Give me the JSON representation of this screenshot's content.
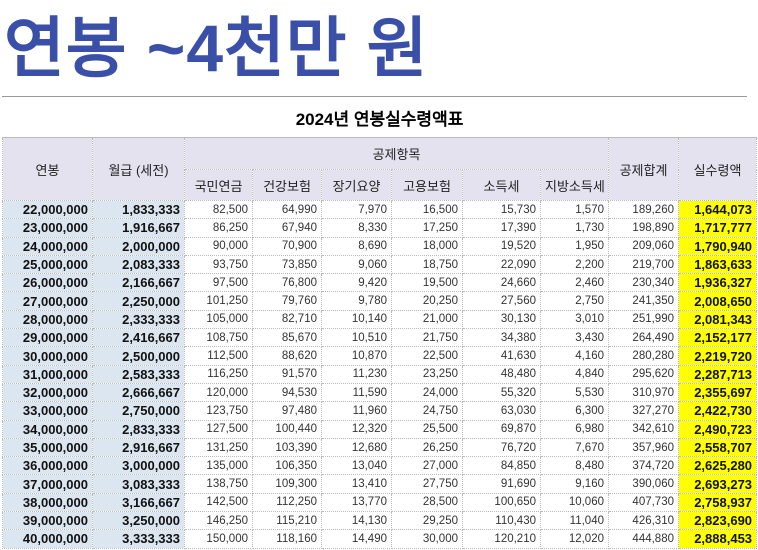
{
  "banner_title": "연봉 ~4천만 원",
  "table": {
    "title": "2024년 연봉실수령액표",
    "headers": {
      "salary": "연봉",
      "monthly": "월급 (세전)",
      "deductions_group": "공제항목",
      "deductions": [
        "국민연금",
        "건강보험",
        "장기요양",
        "고용보험",
        "소득세",
        "지방소득세"
      ],
      "total_deduction": "공제합계",
      "net": "실수령액"
    },
    "rows": [
      [
        "22,000,000",
        "1,833,333",
        "82,500",
        "64,990",
        "7,970",
        "16,500",
        "15,730",
        "1,570",
        "189,260",
        "1,644,073"
      ],
      [
        "23,000,000",
        "1,916,667",
        "86,250",
        "67,940",
        "8,330",
        "17,250",
        "17,390",
        "1,730",
        "198,890",
        "1,717,777"
      ],
      [
        "24,000,000",
        "2,000,000",
        "90,000",
        "70,900",
        "8,690",
        "18,000",
        "19,520",
        "1,950",
        "209,060",
        "1,790,940"
      ],
      [
        "25,000,000",
        "2,083,333",
        "93,750",
        "73,850",
        "9,060",
        "18,750",
        "22,090",
        "2,200",
        "219,700",
        "1,863,633"
      ],
      [
        "26,000,000",
        "2,166,667",
        "97,500",
        "76,800",
        "9,420",
        "19,500",
        "24,660",
        "2,460",
        "230,340",
        "1,936,327"
      ],
      [
        "27,000,000",
        "2,250,000",
        "101,250",
        "79,760",
        "9,780",
        "20,250",
        "27,560",
        "2,750",
        "241,350",
        "2,008,650"
      ],
      [
        "28,000,000",
        "2,333,333",
        "105,000",
        "82,710",
        "10,140",
        "21,000",
        "30,130",
        "3,010",
        "251,990",
        "2,081,343"
      ],
      [
        "29,000,000",
        "2,416,667",
        "108,750",
        "85,670",
        "10,510",
        "21,750",
        "34,380",
        "3,430",
        "264,490",
        "2,152,177"
      ],
      [
        "30,000,000",
        "2,500,000",
        "112,500",
        "88,620",
        "10,870",
        "22,500",
        "41,630",
        "4,160",
        "280,280",
        "2,219,720"
      ],
      [
        "31,000,000",
        "2,583,333",
        "116,250",
        "91,570",
        "11,230",
        "23,250",
        "48,480",
        "4,840",
        "295,620",
        "2,287,713"
      ],
      [
        "32,000,000",
        "2,666,667",
        "120,000",
        "94,530",
        "11,590",
        "24,000",
        "55,320",
        "5,530",
        "310,970",
        "2,355,697"
      ],
      [
        "33,000,000",
        "2,750,000",
        "123,750",
        "97,480",
        "11,960",
        "24,750",
        "63,030",
        "6,300",
        "327,270",
        "2,422,730"
      ],
      [
        "34,000,000",
        "2,833,333",
        "127,500",
        "100,440",
        "12,320",
        "25,500",
        "69,870",
        "6,980",
        "342,610",
        "2,490,723"
      ],
      [
        "35,000,000",
        "2,916,667",
        "131,250",
        "103,390",
        "12,680",
        "26,250",
        "76,720",
        "7,670",
        "357,960",
        "2,558,707"
      ],
      [
        "36,000,000",
        "3,000,000",
        "135,000",
        "106,350",
        "13,040",
        "27,000",
        "84,850",
        "8,480",
        "374,720",
        "2,625,280"
      ],
      [
        "37,000,000",
        "3,083,333",
        "138,750",
        "109,300",
        "13,410",
        "27,750",
        "91,690",
        "9,160",
        "390,060",
        "2,693,273"
      ],
      [
        "38,000,000",
        "3,166,667",
        "142,500",
        "112,250",
        "13,770",
        "28,500",
        "100,650",
        "10,060",
        "407,730",
        "2,758,937"
      ],
      [
        "39,000,000",
        "3,250,000",
        "146,250",
        "115,210",
        "14,130",
        "29,250",
        "110,430",
        "11,040",
        "426,310",
        "2,823,690"
      ],
      [
        "40,000,000",
        "3,333,333",
        "150,000",
        "118,160",
        "14,490",
        "30,000",
        "120,210",
        "12,020",
        "444,880",
        "2,888,453"
      ]
    ]
  },
  "colors": {
    "banner": "#3a4fa8",
    "header_bg": "#e5e2f0",
    "key_col_bg": "#dce6f1",
    "net_highlight": "#ffff00"
  }
}
